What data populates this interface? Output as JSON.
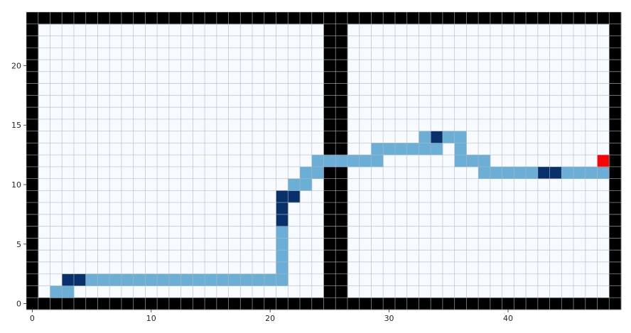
{
  "chart_data": {
    "type": "heatmap",
    "title": "",
    "xlabel": "",
    "ylabel": "",
    "xlim": [
      -0.5,
      49.5
    ],
    "ylim": [
      -0.5,
      24.5
    ],
    "x_ticks": [
      0,
      10,
      20,
      30,
      40
    ],
    "y_ticks": [
      0,
      5,
      10,
      15,
      20
    ],
    "x_tick_labels": [
      "0",
      "10",
      "20",
      "30",
      "40"
    ],
    "y_tick_labels": [
      "0",
      "5",
      "10",
      "15",
      "20"
    ],
    "grid": true,
    "grid_size": {
      "cols": 50,
      "rows": 25
    },
    "colors": {
      "free": "#f7fbff",
      "wall": "#000000",
      "path": "#6baed6",
      "path_dark": "#08306b",
      "goal": "#ff0000",
      "gridline": "#b0b8c0"
    },
    "walls": {
      "border": true,
      "vertical_columns": [
        25,
        26
      ]
    },
    "path_cells": [
      [
        2,
        1
      ],
      [
        3,
        1
      ],
      [
        5,
        2
      ],
      [
        6,
        2
      ],
      [
        7,
        2
      ],
      [
        8,
        2
      ],
      [
        9,
        2
      ],
      [
        10,
        2
      ],
      [
        11,
        2
      ],
      [
        12,
        2
      ],
      [
        13,
        2
      ],
      [
        14,
        2
      ],
      [
        15,
        2
      ],
      [
        16,
        2
      ],
      [
        17,
        2
      ],
      [
        18,
        2
      ],
      [
        19,
        2
      ],
      [
        20,
        2
      ],
      [
        21,
        2
      ],
      [
        21,
        3
      ],
      [
        21,
        4
      ],
      [
        21,
        5
      ],
      [
        21,
        6
      ],
      [
        22,
        10
      ],
      [
        23,
        10
      ],
      [
        23,
        11
      ],
      [
        24,
        11
      ],
      [
        24,
        12
      ],
      [
        25,
        12
      ],
      [
        26,
        12
      ],
      [
        27,
        12
      ],
      [
        28,
        12
      ],
      [
        29,
        12
      ],
      [
        29,
        13
      ],
      [
        30,
        13
      ],
      [
        31,
        13
      ],
      [
        32,
        13
      ],
      [
        33,
        13
      ],
      [
        34,
        13
      ],
      [
        33,
        14
      ],
      [
        35,
        14
      ],
      [
        36,
        14
      ],
      [
        36,
        13
      ],
      [
        36,
        12
      ],
      [
        37,
        12
      ],
      [
        38,
        12
      ],
      [
        38,
        11
      ],
      [
        39,
        11
      ],
      [
        40,
        11
      ],
      [
        41,
        11
      ],
      [
        42,
        11
      ],
      [
        45,
        11
      ],
      [
        46,
        11
      ],
      [
        47,
        11
      ],
      [
        48,
        11
      ]
    ],
    "path_dark_cells": [
      [
        3,
        2
      ],
      [
        4,
        2
      ],
      [
        21,
        7
      ],
      [
        21,
        8
      ],
      [
        21,
        9
      ],
      [
        22,
        9
      ],
      [
        34,
        14
      ],
      [
        43,
        11
      ],
      [
        44,
        11
      ]
    ],
    "goal_cells": [
      [
        48,
        12
      ]
    ]
  }
}
